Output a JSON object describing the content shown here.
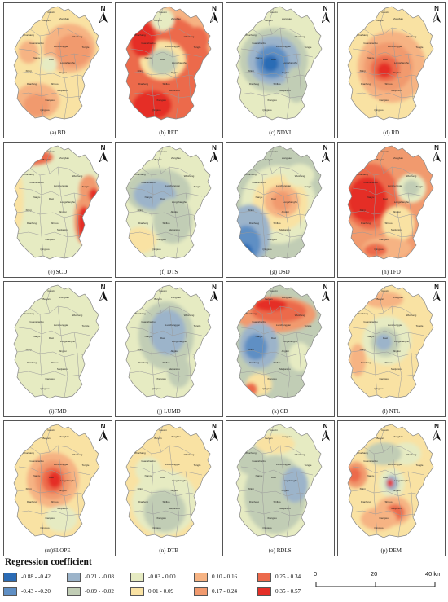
{
  "panels": [
    {
      "id": "a",
      "caption": "(a) BD"
    },
    {
      "id": "b",
      "caption": "(b) RED"
    },
    {
      "id": "c",
      "caption": "(c) NDVI"
    },
    {
      "id": "d",
      "caption": "(d) RD"
    },
    {
      "id": "e",
      "caption": "(e) SCD"
    },
    {
      "id": "f",
      "caption": "(f) DTS"
    },
    {
      "id": "g",
      "caption": "(g) DSD"
    },
    {
      "id": "h",
      "caption": "(h) TFD"
    },
    {
      "id": "i",
      "caption": "(i)FMD"
    },
    {
      "id": "j",
      "caption": "(j) LUMD"
    },
    {
      "id": "k",
      "caption": "(k) CD"
    },
    {
      "id": "l",
      "caption": "(l) NTL"
    },
    {
      "id": "m",
      "caption": "(m)SLOPE"
    },
    {
      "id": "n",
      "caption": "(n) DTB"
    },
    {
      "id": "o",
      "caption": "(o) RDLS"
    },
    {
      "id": "p",
      "caption": "(p) DEM"
    }
  ],
  "north_label": "N",
  "towns": [
    "Guoxin",
    "Beiyan",
    "Zongbao",
    "Zhuchang",
    "Wushang",
    "Guanshanbu",
    "Lunchenggan",
    "Tongle",
    "Nanyu",
    "Daxi",
    "Longshanghu",
    "Xilinji",
    "Jingkui",
    "Dianfeng",
    "Shilluo",
    "Meijianmu",
    "Xiangwu",
    "Qingsuo"
  ],
  "legend": {
    "title": "Regression coefficient",
    "classes": [
      {
        "label": "-0.88 - -0.42",
        "color": "#2b6cb5"
      },
      {
        "label": "-0.43 - -0.20",
        "color": "#5f8fc4"
      },
      {
        "label": "-0.21 - -0.08",
        "color": "#9cb4ca"
      },
      {
        "label": "-0.09 - -0.02",
        "color": "#c1cdb5"
      },
      {
        "label": "-0.03 - 0.00",
        "color": "#e6ebc2"
      },
      {
        "label": "0.01 - 0.09",
        "color": "#f9e2a3"
      },
      {
        "label": "0.10 - 0.16",
        "color": "#f6b383"
      },
      {
        "label": "0.17 - 0.24",
        "color": "#f19a6e"
      },
      {
        "label": "0.25 - 0.34",
        "color": "#ec6a4c"
      },
      {
        "label": "0.35 - 0.57",
        "color": "#e52f27"
      }
    ]
  },
  "scale_bar": {
    "ticks": [
      "0",
      "20",
      "40 km"
    ]
  }
}
